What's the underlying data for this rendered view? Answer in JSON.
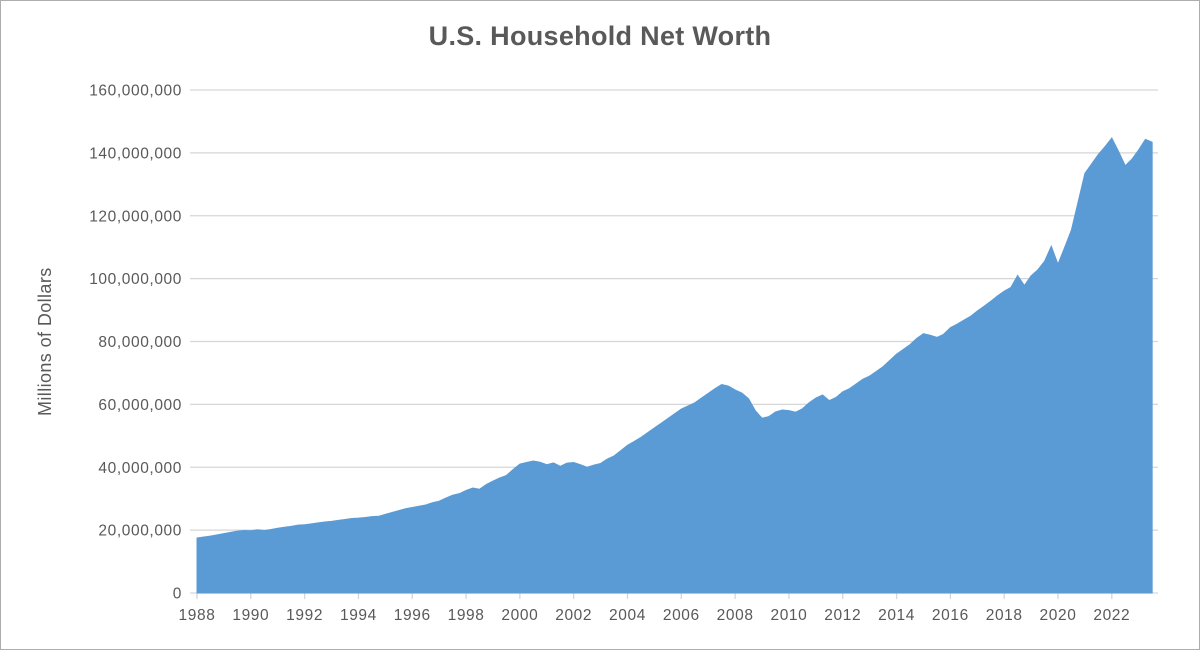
{
  "window": {
    "background": "#ffffff",
    "border_color": "#adadad"
  },
  "chart_data": {
    "type": "area",
    "title": "U.S. Household Net Worth",
    "xlabel": "",
    "ylabel": "Millions of Dollars",
    "unit": "millions of dollars",
    "frequency": "quarterly",
    "x_start": 1988.0,
    "x_step": 0.25,
    "x_end": 2023.5,
    "ylim": [
      0,
      160000000
    ],
    "y_tick_interval": 20000000,
    "y_tick_labels": [
      "0",
      "20,000,000",
      "40,000,000",
      "60,000,000",
      "80,000,000",
      "100,000,000",
      "120,000,000",
      "140,000,000",
      "160,000,000"
    ],
    "y_tick_values": [
      0,
      20000000,
      40000000,
      60000000,
      80000000,
      100000000,
      120000000,
      140000000,
      160000000
    ],
    "x_tick_labels": [
      "1988",
      "1990",
      "1992",
      "1994",
      "1996",
      "1998",
      "2000",
      "2002",
      "2004",
      "2006",
      "2008",
      "2010",
      "2012",
      "2014",
      "2016",
      "2018",
      "2020",
      "2022"
    ],
    "x_tick_years": [
      1988,
      1990,
      1992,
      1994,
      1996,
      1998,
      2000,
      2002,
      2004,
      2006,
      2008,
      2010,
      2012,
      2014,
      2016,
      2018,
      2020,
      2022
    ],
    "grid": "horizontal",
    "legend": "none",
    "area_color": "#5B9BD5",
    "grid_color": "#D6D6D6",
    "text_color": "#595959",
    "values": [
      17500000,
      17800000,
      18100000,
      18500000,
      18900000,
      19300000,
      19700000,
      19900000,
      19800000,
      20100000,
      19900000,
      20200000,
      20600000,
      20900000,
      21200000,
      21600000,
      21700000,
      22000000,
      22300000,
      22600000,
      22800000,
      23100000,
      23400000,
      23700000,
      23800000,
      24000000,
      24300000,
      24400000,
      25000000,
      25600000,
      26200000,
      26800000,
      27200000,
      27600000,
      28000000,
      28700000,
      29200000,
      30200000,
      31100000,
      31600000,
      32600000,
      33400000,
      33000000,
      34500000,
      35600000,
      36600000,
      37400000,
      39300000,
      41000000,
      41500000,
      42000000,
      41600000,
      40800000,
      41400000,
      40300000,
      41300000,
      41500000,
      40800000,
      40000000,
      40700000,
      41200000,
      42600000,
      43600000,
      45300000,
      47000000,
      48200000,
      49500000,
      51000000,
      52500000,
      54000000,
      55500000,
      57000000,
      58500000,
      59500000,
      60500000,
      62000000,
      63500000,
      65000000,
      66300000,
      65800000,
      64600000,
      63600000,
      61800000,
      58000000,
      55600000,
      56100000,
      57600000,
      58200000,
      58000000,
      57500000,
      58600000,
      60500000,
      62000000,
      63000000,
      61200000,
      62200000,
      64000000,
      65000000,
      66500000,
      68000000,
      69000000,
      70500000,
      72000000,
      74000000,
      76000000,
      77500000,
      79000000,
      81000000,
      82500000,
      82000000,
      81300000,
      82300000,
      84400000,
      85500000,
      86800000,
      88000000,
      89700000,
      91200000,
      92800000,
      94500000,
      96000000,
      97200000,
      101000000,
      97800000,
      100900000,
      102800000,
      105500000,
      110300000,
      104600000,
      110000000,
      115500000,
      124500000,
      133500000,
      136500000,
      139500000,
      142000000,
      144700000,
      140500000,
      135900000,
      138000000,
      141000000,
      144300000,
      143400000
    ]
  }
}
